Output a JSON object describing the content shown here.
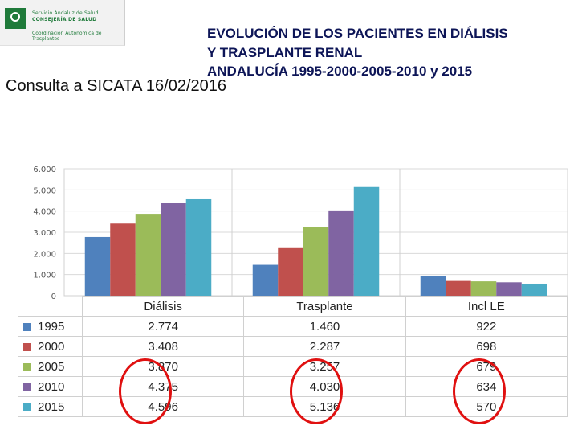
{
  "header": {
    "logo": {
      "line1": "Servicio Andaluz de Salud",
      "line2": "CONSEJERÍA DE SALUD",
      "line3": "Coordinación Autonómica de Trasplantes"
    },
    "title_lines": [
      "EVOLUCIÓN DE LOS PACIENTES EN DIÁLISIS",
      "Y TRASPLANTE RENAL",
      "ANDALUCÍA 1995-2000-2005-2010 y 2015"
    ],
    "subtitle": "Consulta a SICATA 16/02/2016"
  },
  "chart_data": {
    "type": "bar",
    "categories": [
      "Diálisis",
      "Trasplante",
      "Incl LE"
    ],
    "series": [
      {
        "name": "1995",
        "color": "#4f81bd",
        "values": [
          2774,
          1460,
          922
        ],
        "labels": [
          "2.774",
          "1.460",
          "922"
        ]
      },
      {
        "name": "2000",
        "color": "#c0504d",
        "values": [
          3408,
          2287,
          698
        ],
        "labels": [
          "3.408",
          "2.287",
          "698"
        ]
      },
      {
        "name": "2005",
        "color": "#9bbb59",
        "values": [
          3870,
          3257,
          679
        ],
        "labels": [
          "3.870",
          "3.257",
          "679"
        ]
      },
      {
        "name": "2010",
        "color": "#8064a2",
        "values": [
          4375,
          4030,
          634
        ],
        "labels": [
          "4.375",
          "4.030",
          "634"
        ]
      },
      {
        "name": "2015",
        "color": "#4bacc6",
        "values": [
          4596,
          5136,
          570
        ],
        "labels": [
          "4.596",
          "5.136",
          "570"
        ]
      }
    ],
    "yticks": [
      0,
      1000,
      2000,
      3000,
      4000,
      5000,
      6000
    ],
    "ytick_labels": [
      "0",
      "1.000",
      "2.000",
      "3.000",
      "4.000",
      "5.000",
      "6.000"
    ],
    "ylim": [
      0,
      6000
    ],
    "legend": "data-table",
    "highlighted_series": "2010, 2015"
  }
}
